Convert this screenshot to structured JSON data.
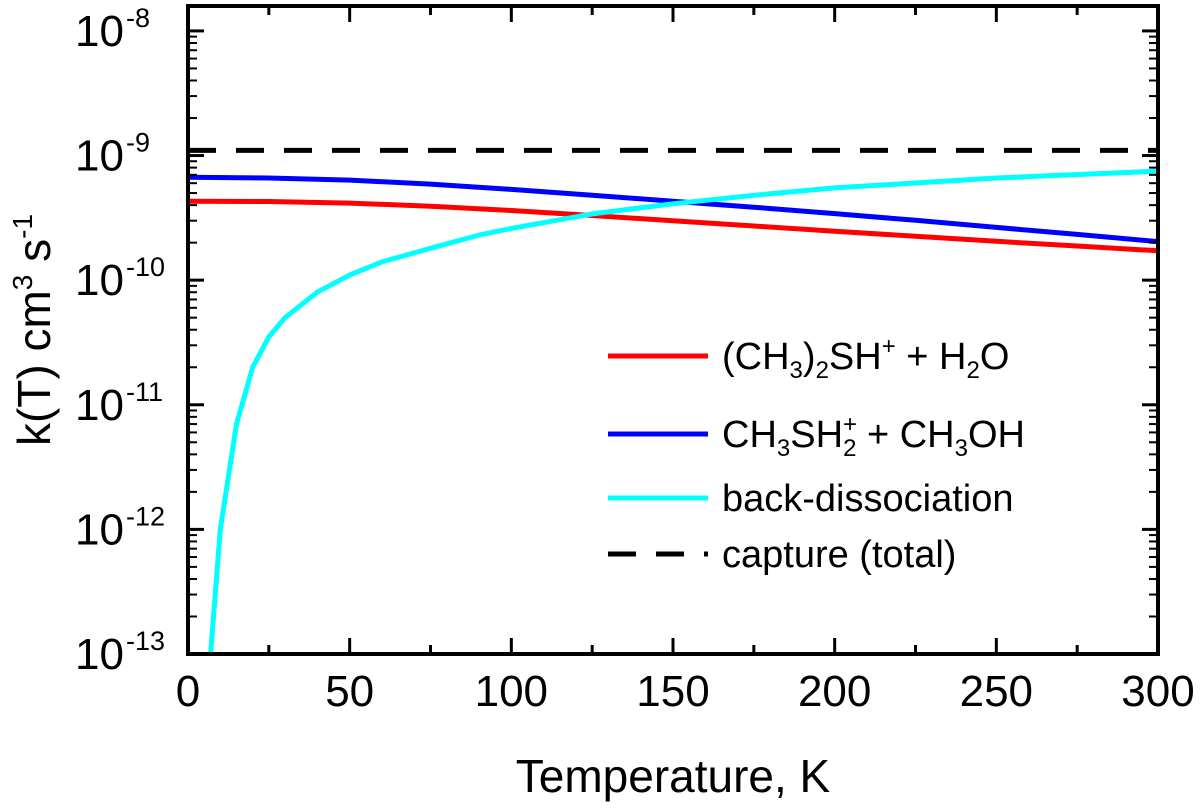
{
  "chart_data": {
    "type": "line",
    "title": "",
    "xlabel": "Temperature, K",
    "ylabel": {
      "text": "k(T) cm",
      "exp1": "3",
      "unit2": " s",
      "exp2": "-1"
    },
    "xlim": [
      0,
      300
    ],
    "ylim_log10": [
      -13,
      -7.8
    ],
    "yscale": "log",
    "grid": false,
    "legend_position": "lower-right",
    "x_ticks": [
      {
        "value": 0,
        "label": "0"
      },
      {
        "value": 50,
        "label": "50"
      },
      {
        "value": 100,
        "label": "100"
      },
      {
        "value": 150,
        "label": "150"
      },
      {
        "value": 200,
        "label": "200"
      },
      {
        "value": 250,
        "label": "250"
      },
      {
        "value": 300,
        "label": "300"
      }
    ],
    "y_ticks": [
      {
        "value": -13,
        "base": "10",
        "exp": "-13"
      },
      {
        "value": -12,
        "base": "10",
        "exp": "-12"
      },
      {
        "value": -11,
        "base": "10",
        "exp": "-11"
      },
      {
        "value": -10,
        "base": "10",
        "exp": "-10"
      },
      {
        "value": -9,
        "base": "10",
        "exp": "-9"
      },
      {
        "value": -8,
        "base": "10",
        "exp": "-8"
      }
    ],
    "series": [
      {
        "name": "(CH3)2SH+ + H2O",
        "label_parts": [
          [
            "n",
            "(CH"
          ],
          [
            "sub",
            "3"
          ],
          [
            "n",
            ")"
          ],
          [
            "sub",
            "2"
          ],
          [
            "n",
            "SH"
          ],
          [
            "sup",
            "+"
          ],
          [
            "n",
            " + H"
          ],
          [
            "sub",
            "2"
          ],
          [
            "n",
            "O"
          ]
        ],
        "color": "#ff0000",
        "dash": "",
        "x": [
          0,
          25,
          50,
          75,
          100,
          125,
          150,
          175,
          200,
          225,
          250,
          275,
          300
        ],
        "y": [
          4.3e-10,
          4.28e-10,
          4.15e-10,
          3.92e-10,
          3.62e-10,
          3.3e-10,
          3e-10,
          2.72e-10,
          2.47e-10,
          2.25e-10,
          2.05e-10,
          1.88e-10,
          1.72e-10
        ]
      },
      {
        "name": "CH3SH2+ + CH3OH",
        "label_parts": [
          [
            "n",
            "CH"
          ],
          [
            "sub",
            "3"
          ],
          [
            "n",
            "SH"
          ],
          [
            "supsub",
            "+",
            "2"
          ],
          [
            "n",
            " + CH"
          ],
          [
            "sub",
            "3"
          ],
          [
            "n",
            "OH"
          ]
        ],
        "color": "#0000ff",
        "dash": "",
        "x": [
          0,
          25,
          50,
          75,
          100,
          125,
          150,
          175,
          200,
          225,
          250,
          275,
          300
        ],
        "y": [
          6.7e-10,
          6.6e-10,
          6.35e-10,
          5.9e-10,
          5.35e-10,
          4.8e-10,
          4.3e-10,
          3.85e-10,
          3.42e-10,
          3.02e-10,
          2.65e-10,
          2.33e-10,
          2.04e-10
        ]
      },
      {
        "name": "back-dissociation",
        "label_parts": [
          [
            "n",
            "back-dissociation"
          ]
        ],
        "color": "#00ffff",
        "dash": "",
        "x": [
          7,
          10,
          15,
          20,
          25,
          30,
          40,
          50,
          60,
          75,
          90,
          100,
          125,
          150,
          175,
          200,
          250,
          300
        ],
        "y": [
          1e-13,
          1e-12,
          7e-12,
          2e-11,
          3.5e-11,
          5e-11,
          8e-11,
          1.1e-10,
          1.4e-10,
          1.8e-10,
          2.3e-10,
          2.6e-10,
          3.4e-10,
          4.1e-10,
          4.8e-10,
          5.5e-10,
          6.6e-10,
          7.5e-10
        ]
      },
      {
        "name": "capture (total)",
        "label_parts": [
          [
            "n",
            "capture (total)"
          ]
        ],
        "color": "#000000",
        "dash": "28,20",
        "x": [
          0,
          300
        ],
        "y": [
          1.1e-09,
          1.1e-09
        ]
      }
    ]
  }
}
